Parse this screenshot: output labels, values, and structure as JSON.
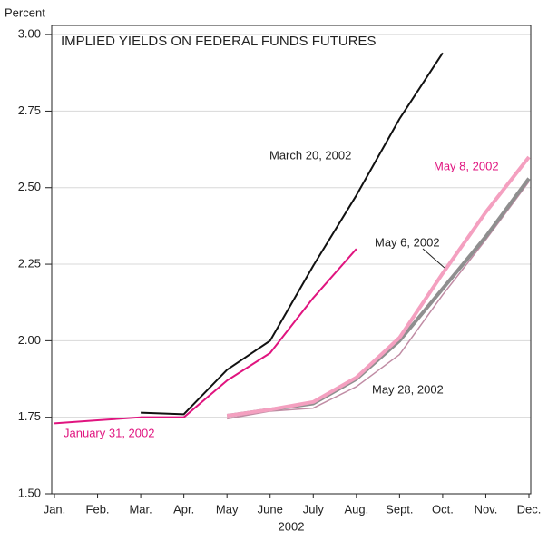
{
  "chart_data": {
    "type": "line",
    "title": "IMPLIED YIELDS ON FEDERAL FUNDS FUTURES",
    "y_label": "Percent",
    "x_label": "2002",
    "categories": [
      "Jan.",
      "Feb.",
      "Mar.",
      "Apr.",
      "May",
      "June",
      "July",
      "Aug.",
      "Sept.",
      "Oct.",
      "Nov.",
      "Dec."
    ],
    "series": [
      {
        "name": "January 31, 2002",
        "color": "#e0147f",
        "width": 2,
        "values": [
          1.73,
          1.74,
          1.75,
          1.75,
          1.87,
          1.96,
          2.14,
          2.3,
          null,
          null,
          null,
          null
        ]
      },
      {
        "name": "March 20, 2002",
        "color": "#111111",
        "width": 2,
        "values": [
          null,
          null,
          1.765,
          1.76,
          1.905,
          2.0,
          2.245,
          2.475,
          2.725,
          2.94,
          null,
          null
        ]
      },
      {
        "name": "May 8, 2002",
        "color": "#f4a0c0",
        "width": 4,
        "values": [
          null,
          null,
          null,
          null,
          1.755,
          1.775,
          1.8,
          1.88,
          2.01,
          2.22,
          2.42,
          2.6
        ]
      },
      {
        "name": "May 6, 2002",
        "color": "#8f8f8f",
        "width": 4,
        "values": [
          null,
          null,
          null,
          null,
          1.755,
          1.775,
          1.795,
          1.875,
          2.0,
          2.17,
          2.34,
          2.53
        ]
      },
      {
        "name": "May 28, 2002",
        "color": "#c08ca4",
        "width": 1.5,
        "values": [
          null,
          null,
          null,
          null,
          1.745,
          1.77,
          1.78,
          1.85,
          1.955,
          2.15,
          2.33,
          2.52
        ]
      }
    ],
    "ylim": [
      1.5,
      3.03
    ],
    "yticks": [
      {
        "value": 1.5,
        "label": "1.50"
      },
      1.75,
      {
        "value": 2.0,
        "label": "2.00"
      },
      2.25,
      {
        "value": 2.5,
        "label": "2.50"
      },
      2.75,
      {
        "value": 3.0,
        "label": "3.00"
      }
    ],
    "grid": true
  }
}
